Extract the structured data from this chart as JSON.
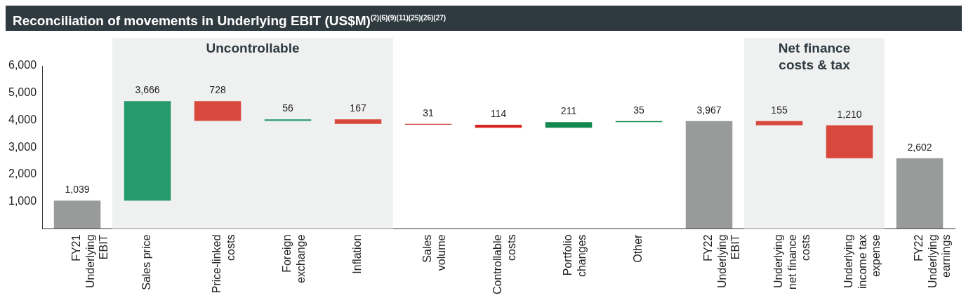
{
  "chart_data": {
    "type": "bar",
    "title": "Reconciliation of movements in Underlying EBIT (US$M)$^{(2)(6)(9)(11)(25)(26)(27)}$",
    "categories": [
      "FY21 Underlying EBIT",
      "Sales price",
      "Price-linked costs",
      "Foreign exchange",
      "Inflation",
      "Sales volume",
      "Controllable costs",
      "Portfolio changes",
      "Other",
      "FY22 Underlying EBIT",
      "Underlying net finance costs",
      "Underlying income tax expense",
      "FY22 Underlying earnings"
    ],
    "values": [
      1039,
      3666,
      -728,
      56,
      -167,
      -31,
      -114,
      211,
      35,
      3967,
      -155,
      -1210,
      2602
    ],
    "base": [
      0,
      1039,
      4705,
      3977,
      4033,
      3866,
      3835,
      3721,
      3932,
      0,
      3967,
      3812,
      0
    ],
    "colors": [
      "#999b9b",
      "#279a6b",
      "#d9483d",
      "#279a6b",
      "#d9483d",
      "#d9483d",
      "#d9231e",
      "#13884f",
      "#13884f",
      "#999b9b",
      "#d9483d",
      "#d9483d",
      "#999b9b"
    ],
    "value_labels": [
      "1,039",
      "3,666",
      "728",
      "56",
      "167",
      "31",
      "114",
      "211",
      "35",
      "3,967",
      "155",
      "1,210",
      "2,602"
    ],
    "ylim": [
      0,
      6000
    ],
    "yticks": [
      {
        "value": 1000,
        "label": "1,000"
      },
      {
        "value": 2000,
        "label": "2,000"
      },
      {
        "value": 3000,
        "label": "3,000"
      },
      {
        "value": 4000,
        "label": "4,000"
      },
      {
        "value": 5000,
        "label": "5,000"
      },
      {
        "value": 6000,
        "label": "6,000"
      }
    ],
    "bands": [
      {
        "axis": "x",
        "from": "Sales price",
        "to": "Inflation",
        "label": "Uncontrollable",
        "color": "#eff1f0"
      },
      {
        "axis": "x",
        "from": "Underlying net finance costs",
        "to": "Underlying income tax expense",
        "label": "Net finance costs & tax",
        "color": "#eff1f0"
      }
    ],
    "grid": false,
    "legend": false
  }
}
